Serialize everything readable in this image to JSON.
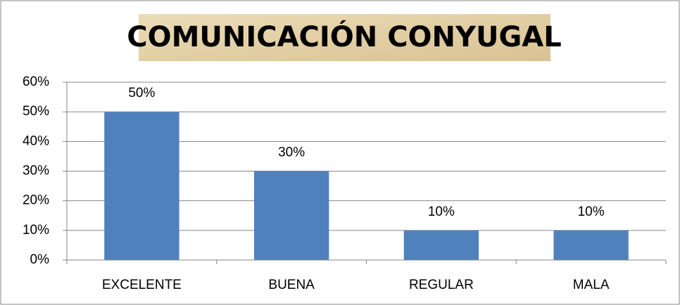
{
  "chart_data": {
    "type": "bar",
    "title": "COMUNICACIÓN CONYUGAL",
    "categories": [
      "EXCELENTE",
      "BUENA",
      "REGULAR",
      "MALA"
    ],
    "values": [
      50,
      30,
      10,
      10
    ],
    "value_labels": [
      "50%",
      "30%",
      "10%",
      "10%"
    ],
    "color": "#4f81bd",
    "ylim": [
      0,
      60
    ],
    "yticks": [
      {
        "value": 0,
        "label": "0%"
      },
      {
        "value": 10,
        "label": "10%"
      },
      {
        "value": 20,
        "label": "20%"
      },
      {
        "value": 30,
        "label": "30%"
      },
      {
        "value": 40,
        "label": "40%"
      },
      {
        "value": 50,
        "label": "50%"
      },
      {
        "value": 60,
        "label": "60%"
      }
    ],
    "grid": true
  }
}
